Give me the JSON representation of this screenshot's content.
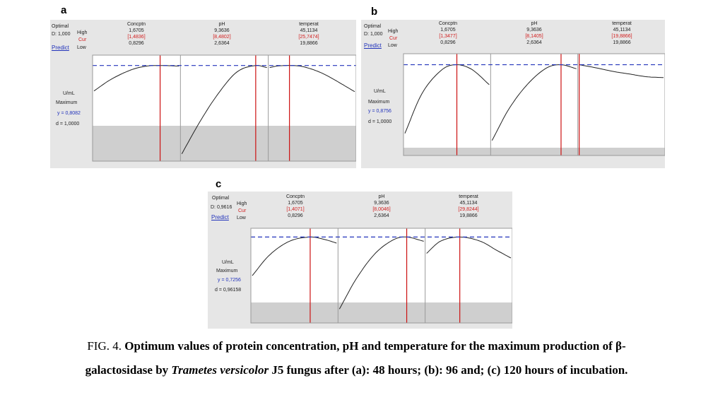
{
  "panels": [
    {
      "label": "a",
      "optimal": "Optimal",
      "d_line": "D: 1,000",
      "predict": "Predict",
      "high": "High",
      "cur": "Cur",
      "low": "Low",
      "response": "U/mL",
      "goal": "Maximum",
      "y_text": "y = 0,8082",
      "d_text": "d = 1,0000",
      "factors": [
        {
          "name": "Concptn",
          "high": "1,6705",
          "cur": "[1,4836]",
          "low": "0,8296"
        },
        {
          "name": "pH",
          "high": "9,3636",
          "cur": "[8,4802]",
          "low": "2,6364"
        },
        {
          "name": "temperat",
          "high": "45,1134",
          "cur": "[25,7474]",
          "low": "19,8866"
        }
      ]
    },
    {
      "label": "b",
      "optimal": "Optimal",
      "d_line": "D: 1,000",
      "predict": "Predict",
      "high": "High",
      "cur": "Cur",
      "low": "Low",
      "response": "U/mL",
      "goal": "Maximum",
      "y_text": "y = 0,8756",
      "d_text": "d = 1,0000",
      "factors": [
        {
          "name": "Concptn",
          "high": "1,6705",
          "cur": "[1,3477]",
          "low": "0,8296"
        },
        {
          "name": "pH",
          "high": "9,3636",
          "cur": "[8,1405]",
          "low": "2,6364"
        },
        {
          "name": "temperat",
          "high": "45,1134",
          "cur": "[19,8866]",
          "low": "19,8866"
        }
      ]
    },
    {
      "label": "c",
      "optimal": "Optimal",
      "d_line": "D: 0,9616",
      "predict": "Predict",
      "high": "High",
      "cur": "Cur",
      "low": "Low",
      "response": "U/mL",
      "goal": "Maximum",
      "y_text": "y = 0,7256",
      "d_text": "d = 0,96158",
      "factors": [
        {
          "name": "Concptn",
          "high": "1,6705",
          "cur": "[1,4071]",
          "low": "0,8296"
        },
        {
          "name": "pH",
          "high": "9,3636",
          "cur": "[8,0046]",
          "low": "2,6364"
        },
        {
          "name": "temperat",
          "high": "45,1134",
          "cur": "[29,8244]",
          "low": "19,8866"
        }
      ]
    }
  ],
  "caption": {
    "prefix": "FIG. 4. ",
    "line1_bold": "Optimum values of protein concentration, pH and temperature for the maximum production of β-",
    "line2_bold_a": "galactosidase by ",
    "line2_italic": "Trametes versicolor",
    "line2_bold_b": " J5 fungus after (a): 48 hours; (b): 96 and; (c) 120 hours of incubation."
  },
  "colors": {
    "panel_bg": "#e6e6e6",
    "plot_bg": "#ffffff",
    "shade": "#cfcfcf",
    "curve": "#222222",
    "optimum_line": "#cc1111",
    "target_line": "#2233bb",
    "label_blue": "#2233bb",
    "cur_red": "#d21f1f"
  },
  "chart_data": [
    {
      "type": "line",
      "panel": "a",
      "response": "U/mL",
      "y_predicted": 0.8082,
      "desirability": 1.0,
      "series": [
        {
          "name": "Concptn",
          "xlim": [
            0.8296,
            1.6705
          ],
          "optimum": 1.4836,
          "x": [
            0.8296,
            1.0,
            1.2,
            1.35,
            1.4836,
            1.6705
          ],
          "y": [
            0.46,
            0.62,
            0.75,
            0.8,
            0.8082,
            0.8
          ]
        },
        {
          "name": "pH",
          "xlim": [
            2.6364,
            9.3636
          ],
          "optimum": 8.4802,
          "x": [
            2.6364,
            4.0,
            5.5,
            7.0,
            8.4802,
            9.3636
          ],
          "y": [
            -0.4,
            0.02,
            0.42,
            0.72,
            0.8082,
            0.78
          ]
        },
        {
          "name": "temperat",
          "xlim": [
            19.8866,
            45.1134
          ],
          "optimum": 25.7474,
          "x": [
            19.8866,
            22.0,
            25.7474,
            30.0,
            36.0,
            45.1134
          ],
          "y": [
            0.78,
            0.8,
            0.8082,
            0.79,
            0.69,
            0.45
          ]
        }
      ]
    },
    {
      "type": "line",
      "panel": "b",
      "response": "U/mL",
      "y_predicted": 0.8756,
      "desirability": 1.0,
      "series": [
        {
          "name": "Concptn",
          "xlim": [
            0.8296,
            1.6705
          ],
          "optimum": 1.3477,
          "x": [
            0.8296,
            1.0,
            1.2,
            1.3477,
            1.5,
            1.6705
          ],
          "y": [
            0.1,
            0.55,
            0.82,
            0.8756,
            0.82,
            0.65
          ]
        },
        {
          "name": "pH",
          "xlim": [
            2.6364,
            9.3636
          ],
          "optimum": 8.1405,
          "x": [
            2.6364,
            4.0,
            5.5,
            7.0,
            8.1405,
            9.3636
          ],
          "y": [
            0.02,
            0.38,
            0.66,
            0.84,
            0.8756,
            0.83
          ]
        },
        {
          "name": "temperat",
          "xlim": [
            19.8866,
            45.1134
          ],
          "optimum": 19.8866,
          "x": [
            19.8866,
            25.0,
            30.0,
            35.0,
            40.0,
            45.1134
          ],
          "y": [
            0.8756,
            0.84,
            0.8,
            0.77,
            0.74,
            0.73
          ]
        }
      ]
    },
    {
      "type": "line",
      "panel": "c",
      "response": "U/mL",
      "y_predicted": 0.7256,
      "desirability": 0.96158,
      "series": [
        {
          "name": "Concptn",
          "xlim": [
            0.8296,
            1.6705
          ],
          "optimum": 1.4071,
          "x": [
            0.8296,
            1.0,
            1.2,
            1.4071,
            1.55,
            1.6705
          ],
          "y": [
            0.31,
            0.53,
            0.68,
            0.7256,
            0.7,
            0.66
          ]
        },
        {
          "name": "pH",
          "xlim": [
            2.6364,
            9.3636
          ],
          "optimum": 8.0046,
          "x": [
            2.6364,
            4.0,
            5.5,
            7.0,
            8.0046,
            9.3636
          ],
          "y": [
            -0.05,
            0.28,
            0.55,
            0.7,
            0.7256,
            0.68
          ]
        },
        {
          "name": "temperat",
          "xlim": [
            19.8866,
            45.1134
          ],
          "optimum": 29.8244,
          "x": [
            19.8866,
            24.0,
            29.8244,
            36.0,
            41.0,
            45.1134
          ],
          "y": [
            0.55,
            0.68,
            0.7256,
            0.68,
            0.58,
            0.5
          ]
        }
      ]
    }
  ]
}
